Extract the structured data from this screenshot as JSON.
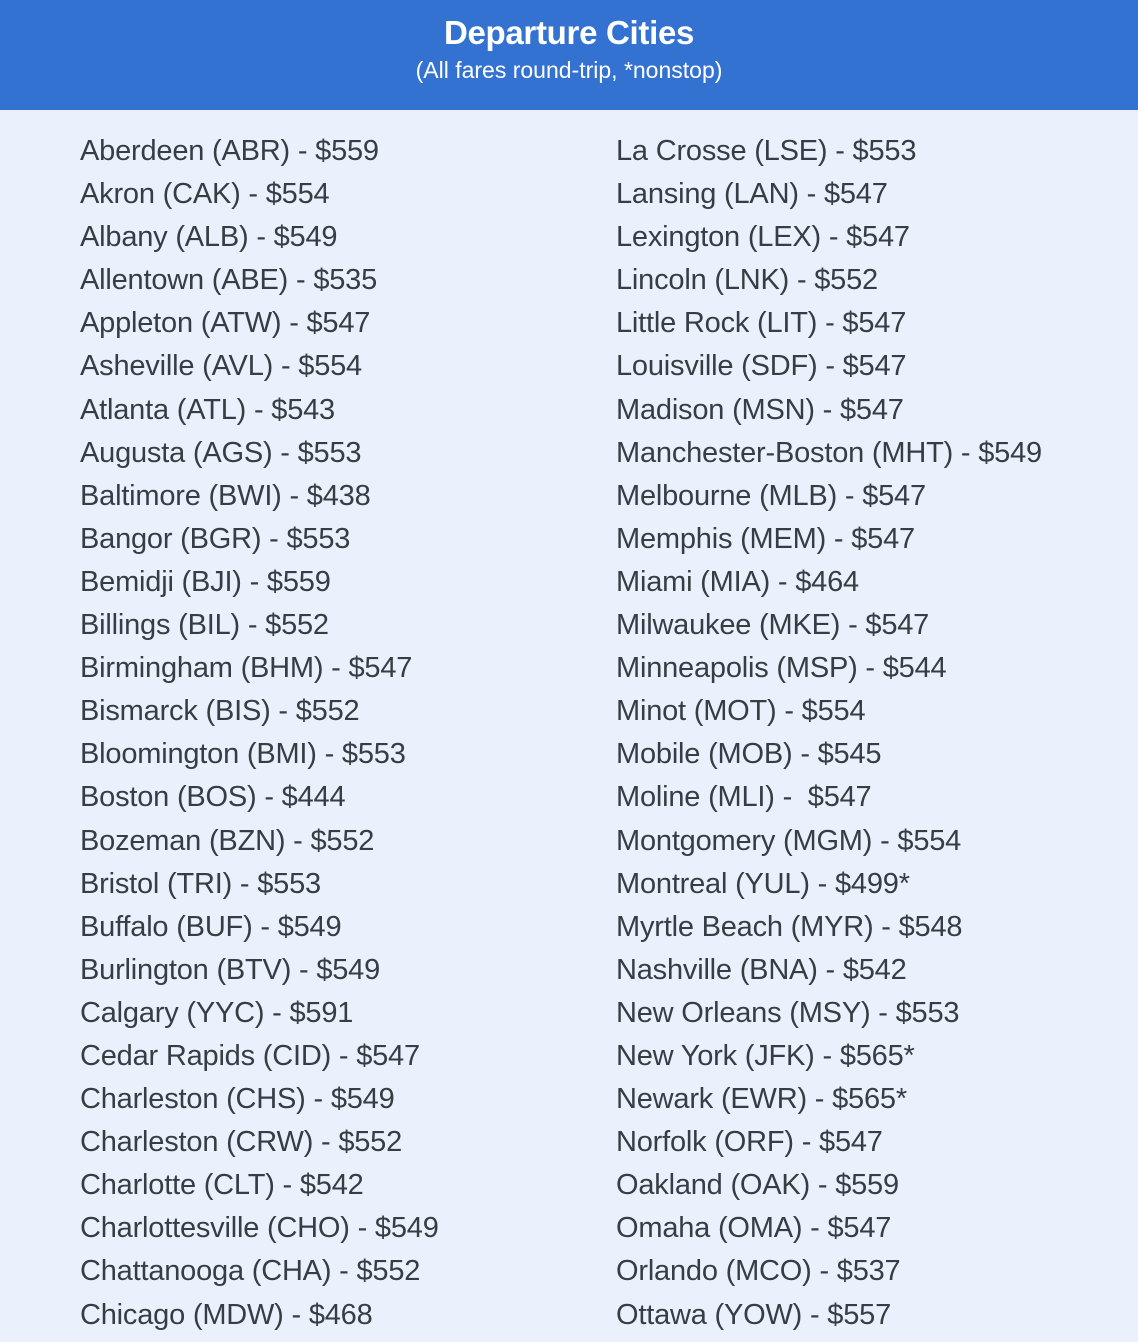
{
  "header": {
    "title": "Departure Cities",
    "subtitle": "(All fares round-trip, *nonstop)",
    "background_color": "#3472d2",
    "text_color": "#ffffff"
  },
  "page": {
    "background_color": "#eaf1fc",
    "text_color": "#363d43"
  },
  "list": {
    "left": [
      "Aberdeen (ABR) - $559",
      "Akron (CAK) - $554",
      "Albany (ALB) - $549",
      "Allentown (ABE) - $535",
      "Appleton (ATW) - $547",
      "Asheville (AVL) - $554",
      "Atlanta (ATL) - $543",
      "Augusta (AGS) - $553",
      "Baltimore (BWI) - $438",
      "Bangor (BGR) - $553",
      "Bemidji (BJI) - $559",
      "Billings (BIL) - $552",
      "Birmingham (BHM) - $547",
      "Bismarck (BIS) - $552",
      "Bloomington (BMI) - $553",
      "Boston (BOS) - $444",
      "Bozeman (BZN) - $552",
      "Bristol (TRI) - $553",
      "Buffalo (BUF) - $549",
      "Burlington (BTV) - $549",
      "Calgary (YYC) - $591",
      "Cedar Rapids (CID) - $547",
      "Charleston (CHS) - $549",
      "Charleston (CRW) - $552",
      "Charlotte (CLT) - $542",
      "Charlottesville (CHO) - $549",
      "Chattanooga (CHA) - $552",
      "Chicago (MDW) - $468"
    ],
    "right": [
      "La Crosse (LSE) - $553",
      "Lansing (LAN) - $547",
      "Lexington (LEX) - $547",
      "Lincoln (LNK) - $552",
      "Little Rock (LIT) - $547",
      "Louisville (SDF) - $547",
      "Madison (MSN) - $547",
      "Manchester-Boston (MHT) - $549",
      "Melbourne (MLB) - $547",
      "Memphis (MEM) - $547",
      "Miami (MIA) - $464",
      "Milwaukee (MKE) - $547",
      "Minneapolis (MSP) - $544",
      "Minot (MOT) - $554",
      "Mobile (MOB) - $545",
      "Moline (MLI) -  $547",
      "Montgomery (MGM) - $554",
      "Montreal (YUL) - $499*",
      "Myrtle Beach (MYR) - $548",
      "Nashville (BNA) - $542",
      "New Orleans (MSY) - $553",
      "New York (JFK) - $565*",
      "Newark (EWR) - $565*",
      "Norfolk (ORF) - $547",
      "Oakland (OAK) - $559",
      "Omaha (OMA) - $547",
      "Orlando (MCO) - $537",
      "Ottawa (YOW) - $557"
    ]
  }
}
